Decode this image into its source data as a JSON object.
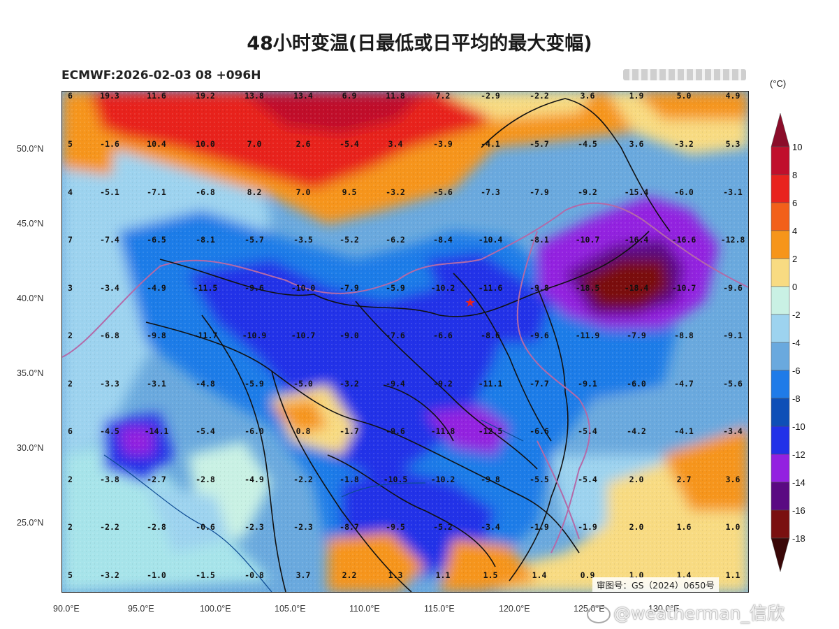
{
  "title": "48小时变温(日最低或日平均的最大变幅)",
  "subtitle": "ECMWF:2026-02-03 08 +096H",
  "review_number": "审图号：GS（2024）0650号",
  "watermark": "@weatherman_信欣",
  "colorbar": {
    "unit": "(°C)",
    "levels": [
      "10",
      "8",
      "6",
      "4",
      "2",
      "0",
      "-2",
      "-4",
      "-6",
      "-8",
      "-10",
      "-12",
      "-14",
      "-16",
      "-18"
    ],
    "colors": [
      "#8b0d2a",
      "#c00f2c",
      "#e8231e",
      "#f2601a",
      "#f6951a",
      "#f8db82",
      "#c9f1e4",
      "#9dd3ef",
      "#6aa9de",
      "#1f7be8",
      "#0e4fb7",
      "#2231e8",
      "#9321e0",
      "#5a0a82",
      "#7a1010",
      "#3a0808"
    ]
  },
  "axes": {
    "lat_labels": [
      "50.0°N",
      "45.0°N",
      "40.0°N",
      "35.0°N",
      "30.0°N",
      "25.0°N"
    ],
    "lon_labels": [
      "90.0°E",
      "95.0°E",
      "100.0°E",
      "105.0°E",
      "110.0°E",
      "115.0°E",
      "120.0°E",
      "125.0°E",
      "130.0°E"
    ]
  },
  "map_values": [
    {
      "row": 0,
      "cols": [
        "6",
        "19.3",
        "11.6",
        "19.2",
        "13.8",
        "13.4",
        "6.9",
        "11.8",
        "7.2",
        "-2.9",
        "-2.2",
        "3.6",
        "1.9",
        "5.0",
        "4.9"
      ]
    },
    {
      "row": 1,
      "cols": [
        "5",
        "-1.6",
        "10.4",
        "10.0",
        "7.0",
        "2.6",
        "-5.4",
        "3.4",
        "-3.9",
        "-4.1",
        "-5.7",
        "-4.5",
        "3.6",
        "-3.2",
        "5.3"
      ]
    },
    {
      "row": 2,
      "cols": [
        "4",
        "-5.1",
        "-7.1",
        "-6.8",
        "8.2",
        "7.0",
        "9.5",
        "-3.2",
        "-5.6",
        "-7.3",
        "-7.9",
        "-9.2",
        "-15.4",
        "-6.0",
        "-3.1"
      ]
    },
    {
      "row": 3,
      "cols": [
        "7",
        "-7.4",
        "-6.5",
        "-8.1",
        "-5.7",
        "-3.5",
        "-5.2",
        "-6.2",
        "-8.4",
        "-10.4",
        "-8.1",
        "-10.7",
        "-16.4",
        "-16.6",
        "-12.8"
      ]
    },
    {
      "row": 4,
      "cols": [
        "3",
        "-3.4",
        "-4.9",
        "-11.5",
        "-9.6",
        "-10.0",
        "-7.9",
        "-5.9",
        "-10.2",
        "-11.6",
        "-9.8",
        "-18.5",
        "-18.4",
        "-10.7",
        "-9.6"
      ]
    },
    {
      "row": 5,
      "cols": [
        "2",
        "-6.8",
        "-9.8",
        "-11.7",
        "-10.9",
        "-10.7",
        "-9.0",
        "-7.6",
        "-6.6",
        "-8.6",
        "-9.6",
        "-11.9",
        "-7.9",
        "-8.8",
        "-9.1"
      ]
    },
    {
      "row": 6,
      "cols": [
        "2",
        "-3.3",
        "-3.1",
        "-4.8",
        "-5.9",
        "-5.0",
        "-3.2",
        "-9.4",
        "-9.2",
        "-11.1",
        "-7.7",
        "-9.1",
        "-6.0",
        "-4.7",
        "-5.6"
      ]
    },
    {
      "row": 7,
      "cols": [
        "6",
        "-4.5",
        "-14.1",
        "-5.4",
        "-6.0",
        "0.8",
        "-1.7",
        "-9.6",
        "-11.8",
        "-12.5",
        "-6.6",
        "-5.4",
        "-4.2",
        "-4.1",
        "-3.4"
      ]
    },
    {
      "row": 8,
      "cols": [
        "2",
        "-3.8",
        "-2.7",
        "-2.8",
        "-4.9",
        "-2.2",
        "-1.8",
        "-10.5",
        "-10.2",
        "-9.8",
        "-5.5",
        "-5.4",
        "2.0",
        "2.7",
        "3.6"
      ]
    },
    {
      "row": 9,
      "cols": [
        "2",
        "-2.2",
        "-2.8",
        "-0.6",
        "-2.3",
        "-2.3",
        "-8.7",
        "-9.5",
        "-5.2",
        "-3.4",
        "-1.9",
        "-1.9",
        "2.0",
        "1.6",
        "1.0"
      ]
    },
    {
      "row": 10,
      "cols": [
        "5",
        "-3.2",
        "-1.0",
        "-1.5",
        "-0.8",
        "3.7",
        "2.2",
        "1.3",
        "1.1",
        "1.5",
        "1.4",
        "0.9",
        "1.0",
        "1.4",
        "1.1"
      ]
    }
  ]
}
